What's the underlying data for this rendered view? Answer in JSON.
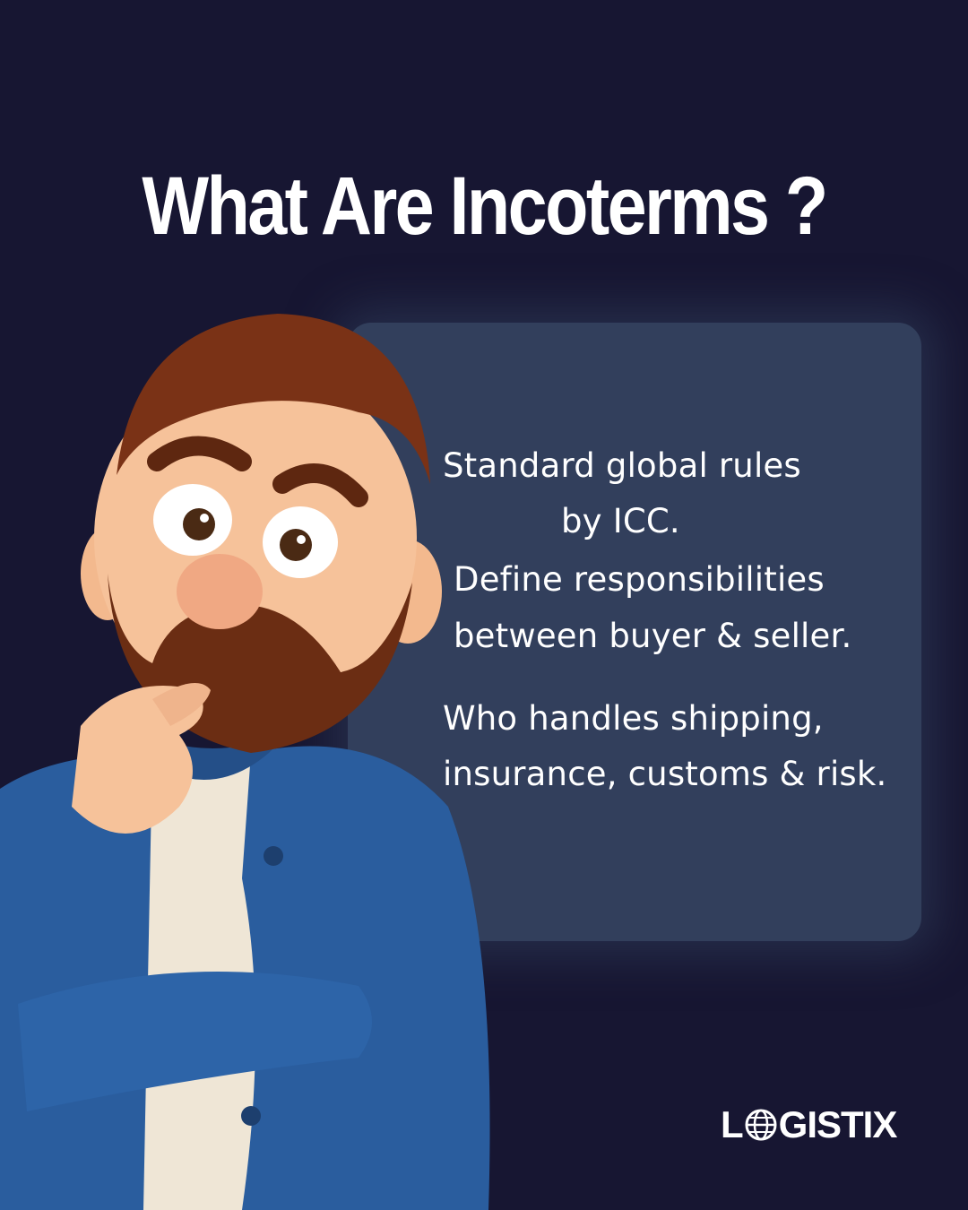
{
  "title": "What Are Incoterms ?",
  "info": {
    "line1": "Standard global rules",
    "line2": "by ICC.",
    "line3": "Define responsibilities",
    "line4": "between buyer & seller.",
    "line5": "Who handles shipping,",
    "line6": "insurance, customs & risk."
  },
  "logo": {
    "prefix": "L",
    "icon": "globe-icon",
    "suffix": "GISTIX"
  },
  "illustration": {
    "subject": "thinking-bearded-man-illustration"
  },
  "colors": {
    "background": "#171632",
    "panel": "#323f5c",
    "text": "#ffffff",
    "jacket": "#2a5d9e",
    "hair": "#7a3216"
  }
}
